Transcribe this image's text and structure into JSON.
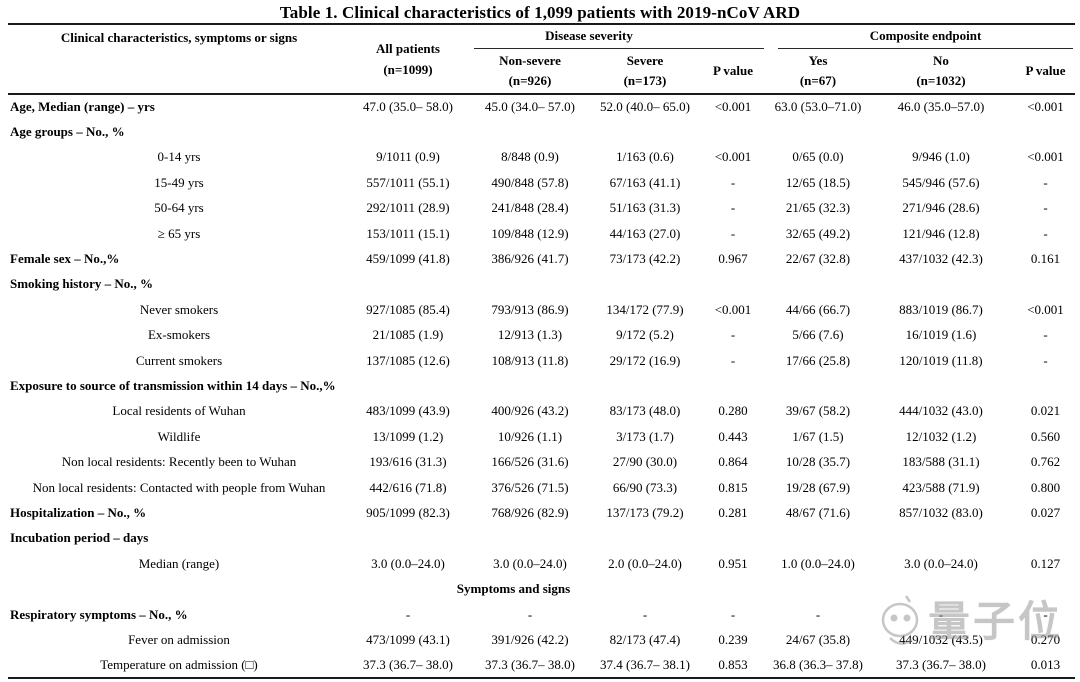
{
  "title": "Table 1. Clinical characteristics of 1,099 patients with 2019-nCoV ARD",
  "colors": {
    "text": "#000000",
    "rule": "#1a1a1a",
    "watermark": "#8f8f8f"
  },
  "watermark": {
    "text": "量子位"
  },
  "table": {
    "columns": {
      "characteristics": "Clinical characteristics, symptoms or signs",
      "all_patients": {
        "line1": "All patients",
        "line2": "(n=1099)"
      },
      "non_severe": {
        "line1": "Non-severe",
        "line2": "(n=926)"
      },
      "severe": {
        "line1": "Severe",
        "line2": "(n=173)"
      },
      "p_value_severity": "P value",
      "yes": {
        "line1": "Yes",
        "line2": "(n=67)"
      },
      "no": {
        "line1": "No",
        "line2": "(n=1032)"
      },
      "p_value_composite": "P value"
    },
    "groups": {
      "severity": "Disease severity",
      "composite": "Composite endpoint"
    },
    "rows": [
      {
        "label": "Age, Median (range) – yrs",
        "style": "bold",
        "values": [
          "47.0 (35.0– 58.0)",
          "45.0 (34.0– 57.0)",
          "52.0 (40.0– 65.0)",
          "<0.001",
          "63.0 (53.0–71.0)",
          "46.0 (35.0–57.0)",
          "<0.001"
        ]
      },
      {
        "label": "Age groups – No., %",
        "style": "bold",
        "values": [
          "",
          "",
          "",
          "",
          "",
          "",
          ""
        ]
      },
      {
        "label": "0-14 yrs",
        "style": "item",
        "values": [
          "9/1011 (0.9)",
          "8/848 (0.9)",
          "1/163 (0.6)",
          "<0.001",
          "0/65 (0.0)",
          "9/946 (1.0)",
          "<0.001"
        ]
      },
      {
        "label": "15-49 yrs",
        "style": "item",
        "values": [
          "557/1011 (55.1)",
          "490/848 (57.8)",
          "67/163 (41.1)",
          "-",
          "12/65 (18.5)",
          "545/946 (57.6)",
          "-"
        ]
      },
      {
        "label": "50-64 yrs",
        "style": "item",
        "values": [
          "292/1011 (28.9)",
          "241/848 (28.4)",
          "51/163 (31.3)",
          "-",
          "21/65 (32.3)",
          "271/946 (28.6)",
          "-"
        ]
      },
      {
        "label": "≥ 65 yrs",
        "style": "item",
        "values": [
          "153/1011 (15.1)",
          "109/848 (12.9)",
          "44/163 (27.0)",
          "-",
          "32/65 (49.2)",
          "121/946 (12.8)",
          "-"
        ]
      },
      {
        "label": "Female sex – No.,%",
        "style": "bold",
        "values": [
          "459/1099 (41.8)",
          "386/926 (41.7)",
          "73/173 (42.2)",
          "0.967",
          "22/67 (32.8)",
          "437/1032 (42.3)",
          "0.161"
        ]
      },
      {
        "label": "Smoking history – No., %",
        "style": "bold",
        "values": [
          "",
          "",
          "",
          "",
          "",
          "",
          ""
        ]
      },
      {
        "label": "Never smokers",
        "style": "item",
        "values": [
          "927/1085 (85.4)",
          "793/913 (86.9)",
          "134/172 (77.9)",
          "<0.001",
          "44/66 (66.7)",
          "883/1019 (86.7)",
          "<0.001"
        ]
      },
      {
        "label": "Ex-smokers",
        "style": "item",
        "values": [
          "21/1085 (1.9)",
          "12/913 (1.3)",
          "9/172 (5.2)",
          "-",
          "5/66 (7.6)",
          "16/1019 (1.6)",
          "-"
        ]
      },
      {
        "label": "Current smokers",
        "style": "item",
        "values": [
          "137/1085 (12.6)",
          "108/913 (11.8)",
          "29/172 (16.9)",
          "-",
          "17/66 (25.8)",
          "120/1019 (11.8)",
          "-"
        ]
      },
      {
        "label": "Exposure to source of transmission within 14 days – No.,%",
        "style": "bold",
        "values": [
          "",
          "",
          "",
          "",
          "",
          "",
          ""
        ]
      },
      {
        "label": "Local residents of Wuhan",
        "style": "item",
        "values": [
          "483/1099 (43.9)",
          "400/926 (43.2)",
          "83/173 (48.0)",
          "0.280",
          "39/67 (58.2)",
          "444/1032 (43.0)",
          "0.021"
        ]
      },
      {
        "label": "Wildlife",
        "style": "item",
        "values": [
          "13/1099 (1.2)",
          "10/926 (1.1)",
          "3/173 (1.7)",
          "0.443",
          "1/67 (1.5)",
          "12/1032 (1.2)",
          "0.560"
        ]
      },
      {
        "label": "Non local residents: Recently been to Wuhan",
        "style": "item",
        "values": [
          "193/616 (31.3)",
          "166/526 (31.6)",
          "27/90 (30.0)",
          "0.864",
          "10/28 (35.7)",
          "183/588 (31.1)",
          "0.762"
        ]
      },
      {
        "label": "Non local residents: Contacted with people from Wuhan",
        "style": "item",
        "values": [
          "442/616 (71.8)",
          "376/526 (71.5)",
          "66/90 (73.3)",
          "0.815",
          "19/28 (67.9)",
          "423/588 (71.9)",
          "0.800"
        ]
      },
      {
        "label": "Hospitalization – No., %",
        "style": "bold",
        "values": [
          "905/1099 (82.3)",
          "768/926 (82.9)",
          "137/173 (79.2)",
          "0.281",
          "48/67 (71.6)",
          "857/1032 (83.0)",
          "0.027"
        ]
      },
      {
        "label": "Incubation period – days",
        "style": "bold",
        "values": [
          "",
          "",
          "",
          "",
          "",
          "",
          ""
        ]
      },
      {
        "label": "Median (range)",
        "style": "item",
        "values": [
          "3.0 (0.0–24.0)",
          "3.0 (0.0–24.0)",
          "2.0 (0.0–24.0)",
          "0.951",
          "1.0 (0.0–24.0)",
          "3.0 (0.0–24.0)",
          "0.127"
        ]
      },
      {
        "type": "spanner",
        "label": "Symptoms and signs",
        "style": "spanner"
      },
      {
        "label": "Respiratory symptoms – No., %",
        "style": "bold",
        "values": [
          "-",
          "-",
          "-",
          "-",
          "-",
          "-",
          "-"
        ]
      },
      {
        "label": "Fever on admission",
        "style": "item",
        "values": [
          "473/1099 (43.1)",
          "391/926 (42.2)",
          "82/173 (47.4)",
          "0.239",
          "24/67 (35.8)",
          "449/1032 (43.5)",
          "0.270"
        ]
      },
      {
        "label": "Temperature on admission (□)",
        "style": "item",
        "values": [
          "37.3 (36.7– 38.0)",
          "37.3 (36.7– 38.0)",
          "37.4 (36.7– 38.1)",
          "0.853",
          "36.8 (36.3– 37.8)",
          "37.3 (36.7– 38.0)",
          "0.013"
        ]
      }
    ]
  }
}
